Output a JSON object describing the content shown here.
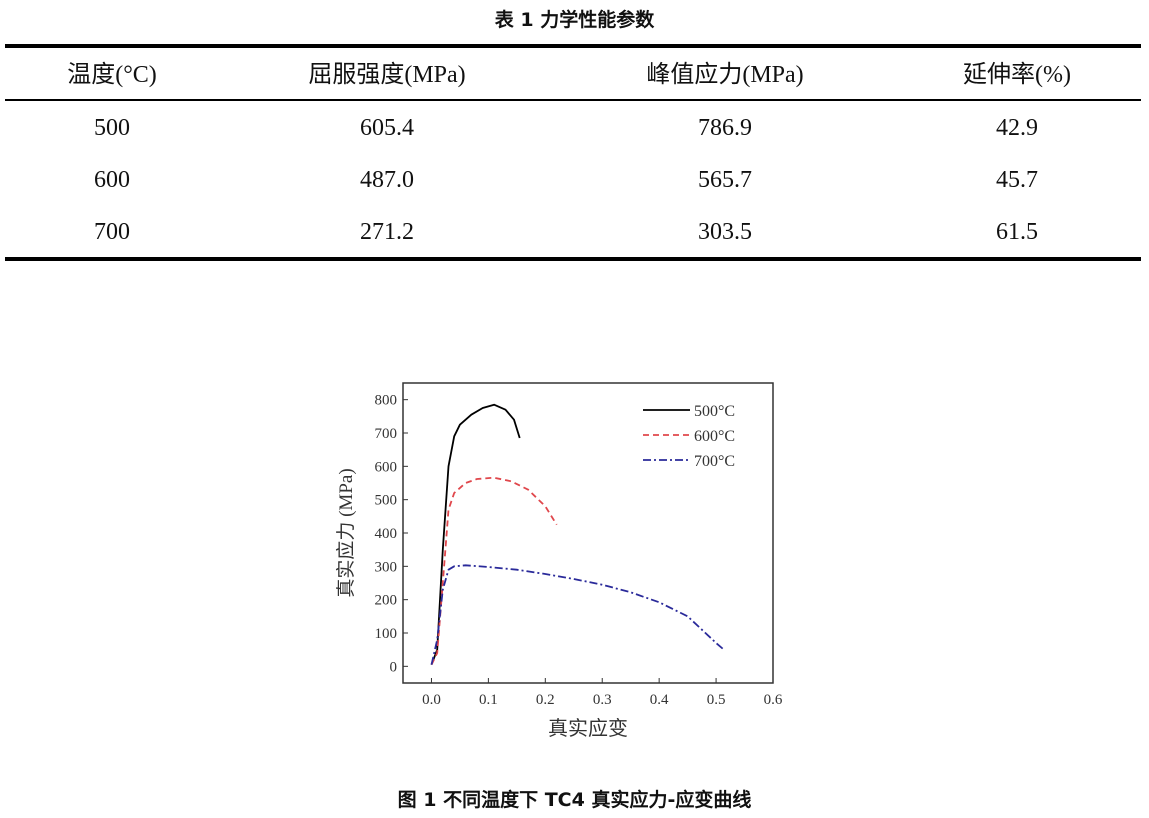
{
  "table": {
    "title": "表 1  力学性能参数",
    "headers": [
      "温度(°C)",
      "屈服强度(MPa)",
      "峰值应力(MPa)",
      "延伸率(%)"
    ],
    "rows": [
      [
        "500",
        "605.4",
        "786.9",
        "42.9"
      ],
      [
        "600",
        "487.0",
        "565.7",
        "45.7"
      ],
      [
        "700",
        "271.2",
        "303.5",
        "61.5"
      ]
    ]
  },
  "figure": {
    "caption": "图 1  不同温度下 TC4 真实应力-应变曲线"
  },
  "chart_data": {
    "type": "line",
    "xlabel": "真实应变",
    "ylabel": "真实应力 (MPa)",
    "xlim": [
      -0.05,
      0.6
    ],
    "ylim": [
      -50,
      850
    ],
    "xticks": [
      "0.0",
      "0.1",
      "0.2",
      "0.3",
      "0.4",
      "0.5",
      "0.6"
    ],
    "yticks": [
      "0",
      "100",
      "200",
      "300",
      "400",
      "500",
      "600",
      "700",
      "800"
    ],
    "grid": false,
    "legend_position": "top-right",
    "series": [
      {
        "name": "500°C",
        "color": "#000000",
        "style": "solid",
        "x": [
          0,
          0.01,
          0.02,
          0.03,
          0.04,
          0.05,
          0.07,
          0.09,
          0.11,
          0.13,
          0.145,
          0.155
        ],
        "y": [
          5,
          50,
          350,
          600,
          690,
          725,
          755,
          775,
          785,
          770,
          740,
          685
        ]
      },
      {
        "name": "600°C",
        "color": "#e0474c",
        "style": "dash",
        "x": [
          0,
          0.01,
          0.02,
          0.03,
          0.04,
          0.06,
          0.08,
          0.11,
          0.14,
          0.17,
          0.2,
          0.22
        ],
        "y": [
          5,
          40,
          250,
          470,
          520,
          550,
          562,
          566,
          555,
          530,
          480,
          425
        ]
      },
      {
        "name": "700°C",
        "color": "#2a2a9a",
        "style": "dashdot",
        "x": [
          0,
          0.01,
          0.02,
          0.03,
          0.04,
          0.06,
          0.1,
          0.15,
          0.2,
          0.25,
          0.3,
          0.35,
          0.4,
          0.45,
          0.5,
          0.515
        ],
        "y": [
          5,
          80,
          230,
          290,
          300,
          303,
          298,
          290,
          277,
          262,
          245,
          222,
          192,
          150,
          70,
          48
        ]
      }
    ]
  }
}
